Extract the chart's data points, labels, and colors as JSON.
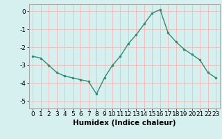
{
  "x": [
    0,
    1,
    2,
    3,
    4,
    5,
    6,
    7,
    8,
    9,
    10,
    11,
    12,
    13,
    14,
    15,
    16,
    17,
    18,
    19,
    20,
    21,
    22,
    23
  ],
  "y": [
    -2.5,
    -2.6,
    -3.0,
    -3.4,
    -3.6,
    -3.7,
    -3.8,
    -3.9,
    -4.6,
    -3.7,
    -3.0,
    -2.5,
    -1.8,
    -1.3,
    -0.7,
    -0.1,
    0.1,
    -1.2,
    -1.7,
    -2.1,
    -2.4,
    -2.7,
    -3.4,
    -3.7
  ],
  "line_color": "#2e8b74",
  "marker": "o",
  "marker_size": 2,
  "bg_color": "#d6f0f0",
  "grid_color": "#f5b8b8",
  "xlabel": "Humidex (Indice chaleur)",
  "ylim": [
    -5.4,
    0.4
  ],
  "xlim": [
    -0.5,
    23.5
  ],
  "yticks": [
    0,
    -1,
    -2,
    -3,
    -4,
    -5
  ],
  "xticks": [
    0,
    1,
    2,
    3,
    4,
    5,
    6,
    7,
    8,
    9,
    10,
    11,
    12,
    13,
    14,
    15,
    16,
    17,
    18,
    19,
    20,
    21,
    22,
    23
  ],
  "tick_label_fontsize": 6.5,
  "xlabel_fontsize": 7.5,
  "line_width": 1.0,
  "marker_color": "#2e8b74",
  "spine_color": "#aaaaaa"
}
